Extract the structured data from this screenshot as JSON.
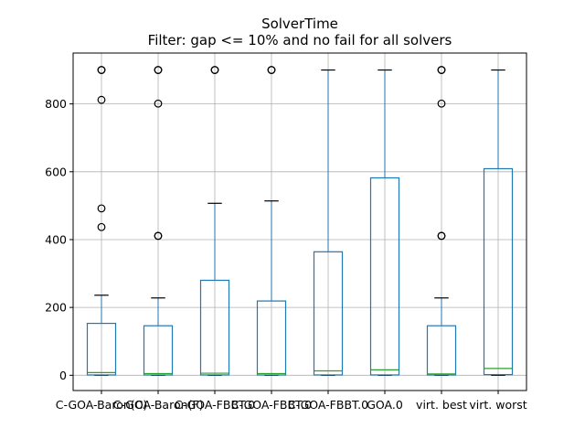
{
  "chart_data": {
    "type": "boxplot",
    "title": "SolverTime",
    "subtitle": "Filter: gap <= 10% and no fail for all solvers",
    "xlabel": "",
    "ylabel": "",
    "ylim": [
      -45,
      950
    ],
    "yticks": [
      0,
      200,
      400,
      600,
      800
    ],
    "grid": true,
    "colors": {
      "box": "#1f77b4",
      "median": "#2ca02c",
      "whisker": "#000000",
      "grid": "#b0b0b0",
      "flier": "#000000"
    },
    "categories": [
      "C-GOA-Baron(C)",
      "C-GOA-Baron(F)",
      "C-GOA-FBBT.0",
      "C-GOA-FBBT.0",
      "C-GOA-FBBT.0",
      "GOA.0",
      "virt. best",
      "virt. worst"
    ],
    "boxes": [
      {
        "label": "C-GOA-Baron(C)",
        "low": 0,
        "q1": 1,
        "median": 8,
        "q3": 153,
        "high": 236,
        "fliers": [
          900,
          900,
          812,
          492,
          437
        ]
      },
      {
        "label": "C-GOA-Baron(F)",
        "low": 0,
        "q1": 1,
        "median": 5,
        "q3": 146,
        "high": 228,
        "fliers": [
          900,
          900,
          801,
          411,
          411
        ]
      },
      {
        "label": "C-GOA-FBBT.0",
        "low": 0,
        "q1": 1,
        "median": 6,
        "q3": 280,
        "high": 507,
        "fliers": [
          900,
          900
        ]
      },
      {
        "label": "C-GOA-FBBT.0",
        "low": 0,
        "q1": 1,
        "median": 5,
        "q3": 219,
        "high": 514,
        "fliers": [
          900,
          900
        ]
      },
      {
        "label": "C-GOA-FBBT.0",
        "low": 0,
        "q1": 1,
        "median": 13,
        "q3": 364,
        "high": 900,
        "fliers": []
      },
      {
        "label": "GOA.0",
        "low": 0,
        "q1": 1,
        "median": 16,
        "q3": 582,
        "high": 900,
        "fliers": []
      },
      {
        "label": "virt. best",
        "low": 0,
        "q1": 1,
        "median": 4,
        "q3": 146,
        "high": 228,
        "fliers": [
          900,
          900,
          801,
          411,
          411
        ]
      },
      {
        "label": "virt. worst",
        "low": 0,
        "q1": 2,
        "median": 20,
        "q3": 609,
        "high": 900,
        "fliers": []
      }
    ]
  }
}
